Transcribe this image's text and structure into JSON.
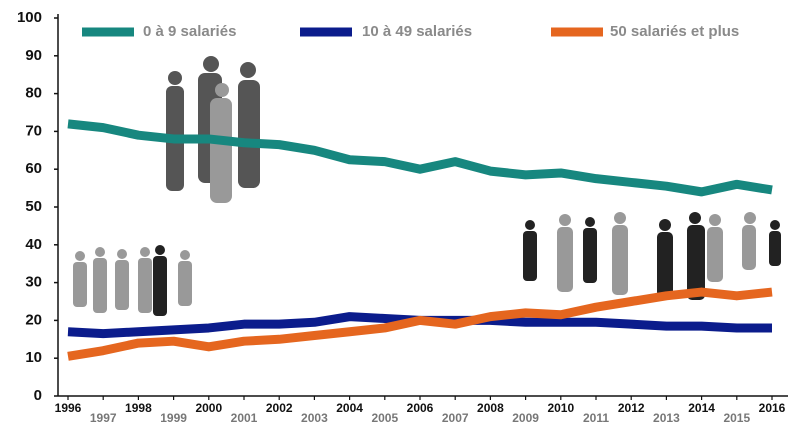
{
  "chart_data": {
    "type": "line",
    "x": [
      1996,
      1997,
      1998,
      1999,
      2000,
      2001,
      2002,
      2003,
      2004,
      2005,
      2006,
      2007,
      2008,
      2009,
      2010,
      2011,
      2012,
      2013,
      2014,
      2015,
      2016
    ],
    "series": [
      {
        "name": "0 à 9 salariés",
        "color": "#17877f",
        "values": [
          72,
          71,
          69,
          68,
          68,
          67,
          66.5,
          65,
          62.5,
          62,
          60,
          62,
          59.5,
          58.5,
          59,
          57.5,
          56.5,
          55.5,
          54,
          56,
          54.5
        ]
      },
      {
        "name": "10 à 49 salariés",
        "color": "#0b1c8c",
        "values": [
          17,
          16.5,
          17,
          17.5,
          18,
          19,
          19,
          19.5,
          21,
          20.5,
          20,
          20,
          20,
          19.5,
          19.5,
          19.5,
          19,
          18.5,
          18.5,
          18,
          18
        ]
      },
      {
        "name": "50 salariés et plus",
        "color": "#e5661f",
        "values": [
          10.5,
          12,
          14,
          14.5,
          13,
          14.5,
          15,
          16,
          17,
          18,
          20,
          19,
          21,
          22,
          21.5,
          23.5,
          25,
          26.5,
          27.5,
          26.5,
          27.5
        ]
      }
    ],
    "ylim": [
      0,
      100
    ],
    "yticks": [
      0,
      10,
      20,
      30,
      40,
      50,
      60,
      70,
      80,
      90,
      100
    ]
  }
}
